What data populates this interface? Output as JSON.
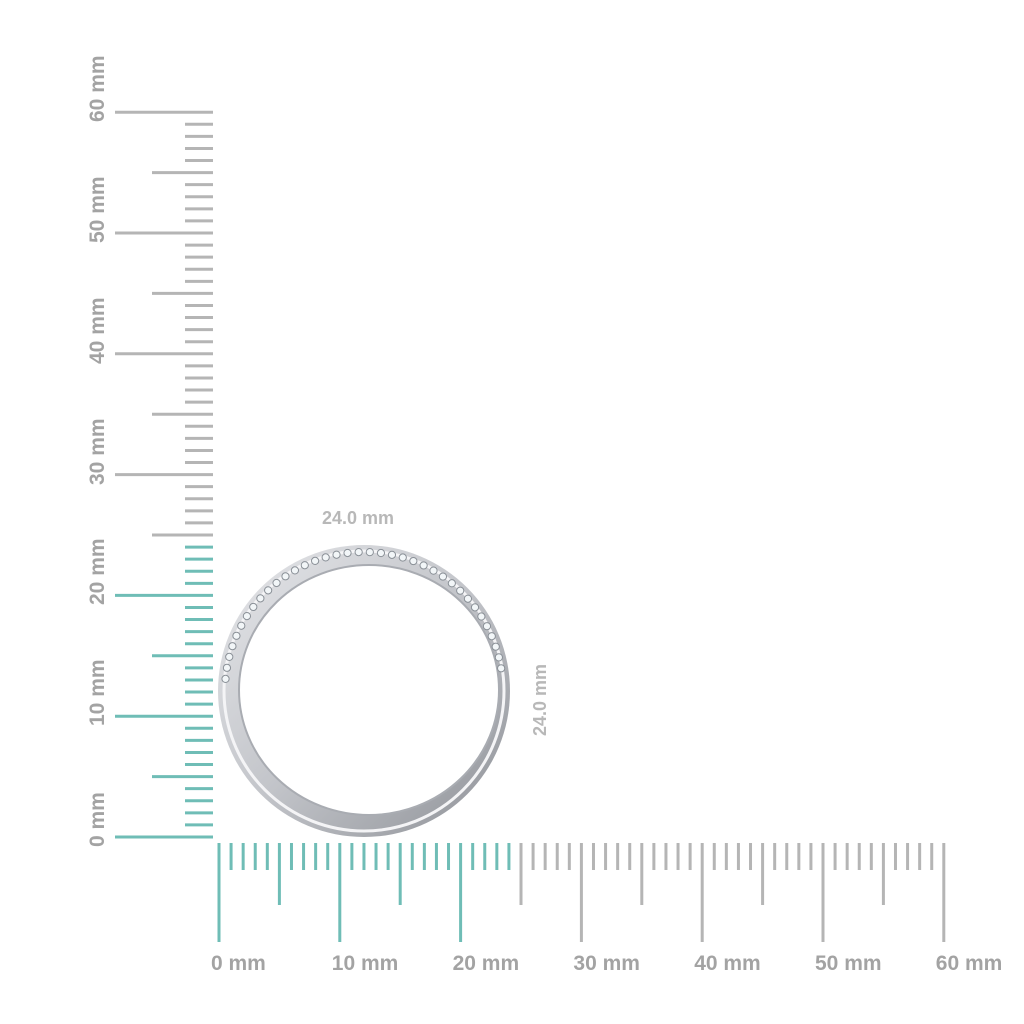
{
  "colors": {
    "highlight": "#6fbdb6",
    "ruler": "#b5b5b5",
    "label": "#a3a3a3",
    "metal": "#c9cbd0"
  },
  "ruler": {
    "unit": "mm",
    "max_mm": 60,
    "highlight_mm": 24,
    "x_labels": [
      "0 mm",
      "10 mm",
      "20 mm",
      "30 mm",
      "40 mm",
      "50 mm",
      "60 mm"
    ],
    "y_labels": [
      "0 mm",
      "10 mm",
      "20 mm",
      "30 mm",
      "40 mm",
      "50 mm",
      "60 mm"
    ]
  },
  "ring": {
    "width_label": "24.0 mm",
    "height_label": "24.0 mm",
    "icon": "diamond-band-ring"
  }
}
